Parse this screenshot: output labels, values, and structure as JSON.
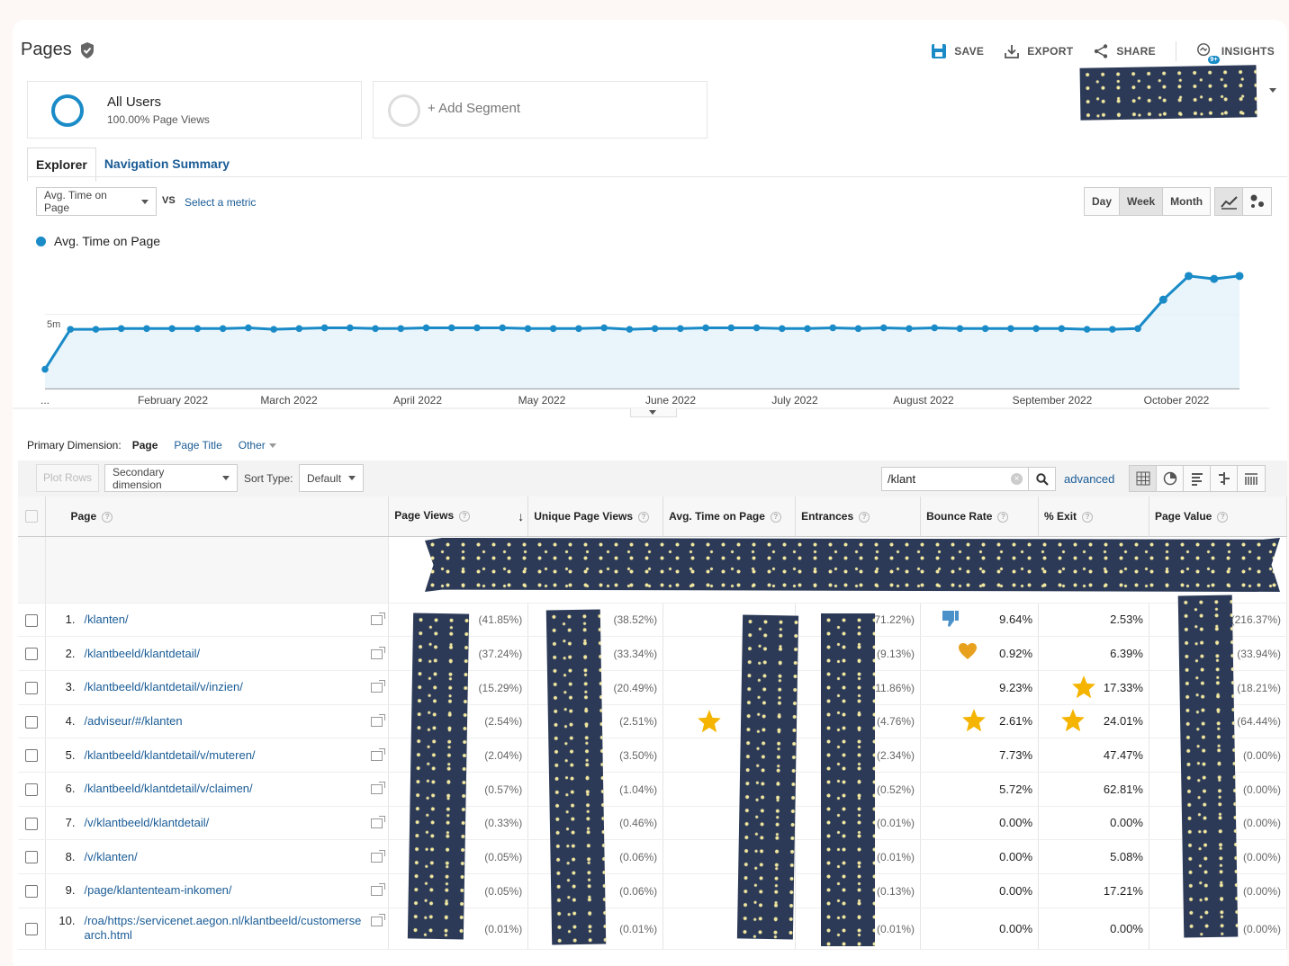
{
  "header": {
    "title": "Pages",
    "save": "SAVE",
    "export": "EXPORT",
    "share": "SHARE",
    "insights": "INSIGHTS",
    "insights_badge": "9+"
  },
  "segments": {
    "all_users": "All Users",
    "all_users_sub": "100.00% Page Views",
    "add": "+ Add Segment"
  },
  "tabs": {
    "explorer": "Explorer",
    "nav_summary": "Navigation Summary"
  },
  "metric": {
    "selected": "Avg. Time on Page",
    "vs": "VS",
    "select": "Select a metric",
    "legend": "Avg. Time on Page"
  },
  "period": {
    "day": "Day",
    "week": "Week",
    "month": "Month"
  },
  "chart_data": {
    "type": "line",
    "series": [
      {
        "name": "Avg. Time on Page",
        "color": "#1a8bc7"
      }
    ],
    "ytick_label": "5m",
    "xtick_labels": [
      "...",
      "February 2022",
      "March 2022",
      "April 2022",
      "May 2022",
      "June 2022",
      "July 2022",
      "August 2022",
      "September 2022",
      "October 2022"
    ],
    "values_min": [
      1.3,
      4.0,
      4.0,
      4.05,
      4.05,
      4.05,
      4.05,
      4.05,
      4.1,
      4.0,
      4.05,
      4.1,
      4.1,
      4.05,
      4.05,
      4.1,
      4.1,
      4.1,
      4.1,
      4.05,
      4.05,
      4.05,
      4.1,
      4.0,
      4.05,
      4.05,
      4.1,
      4.1,
      4.1,
      4.05,
      4.05,
      4.1,
      4.05,
      4.1,
      4.05,
      4.1,
      4.05,
      4.05,
      4.05,
      4.05,
      4.05,
      4.0,
      4.0,
      4.05,
      6.0,
      7.6,
      7.4,
      7.6
    ],
    "ylim": [
      0,
      8.5
    ],
    "grid": true
  },
  "dimension": {
    "label": "Primary Dimension:",
    "page": "Page",
    "page_title": "Page Title",
    "other": "Other"
  },
  "toolbar": {
    "plot_rows": "Plot Rows",
    "secondary": "Secondary dimension",
    "sort_label": "Sort Type:",
    "sort_value": "Default",
    "search_value": "/klant",
    "advanced": "advanced"
  },
  "columns": {
    "page": "Page",
    "page_views": "Page Views",
    "unique": "Unique Page Views",
    "avg_time": "Avg. Time on Page",
    "entrances": "Entrances",
    "bounce": "Bounce Rate",
    "exit": "% Exit",
    "value": "Page Value"
  },
  "rows": [
    {
      "n": "1.",
      "page": "/klanten/",
      "pv_pct": "(41.85%)",
      "upv_pct": "(38.52%)",
      "ent_pct": "(71.22%)",
      "bounce": "9.64%",
      "exit": "2.53%",
      "val_pct": "(216.37%)"
    },
    {
      "n": "2.",
      "page": "/klantbeeld/klantdetail/",
      "pv_pct": "(37.24%)",
      "upv_pct": "(33.34%)",
      "ent_pct": "(9.13%)",
      "bounce": "0.92%",
      "exit": "6.39%",
      "val_pct": "(33.94%)"
    },
    {
      "n": "3.",
      "page": "/klantbeeld/klantdetail/v/inzien/",
      "pv_pct": "(15.29%)",
      "upv_pct": "(20.49%)",
      "ent_pct": "(11.86%)",
      "bounce": "9.23%",
      "exit": "17.33%",
      "val_pct": "(18.21%)"
    },
    {
      "n": "4.",
      "page": "/adviseur/#/klanten",
      "pv_pct": "(2.54%)",
      "upv_pct": "(2.51%)",
      "ent_pct": "(4.76%)",
      "bounce": "2.61%",
      "exit": "24.01%",
      "val_pct": "(64.44%)"
    },
    {
      "n": "5.",
      "page": "/klantbeeld/klantdetail/v/muteren/",
      "pv_pct": "(2.04%)",
      "upv_pct": "(3.50%)",
      "ent_pct": "(2.34%)",
      "bounce": "7.73%",
      "exit": "47.47%",
      "val_pct": "(0.00%)"
    },
    {
      "n": "6.",
      "page": "/klantbeeld/klantdetail/v/claimen/",
      "pv_pct": "(0.57%)",
      "upv_pct": "(1.04%)",
      "ent_pct": "(0.52%)",
      "bounce": "5.72%",
      "exit": "62.81%",
      "val_pct": "(0.00%)"
    },
    {
      "n": "7.",
      "page": "/v/klantbeeld/klantdetail/",
      "pv_pct": "(0.33%)",
      "upv_pct": "(0.46%)",
      "ent_pct": "(0.01%)",
      "bounce": "0.00%",
      "exit": "0.00%",
      "val_pct": "(0.00%)"
    },
    {
      "n": "8.",
      "page": "/v/klanten/",
      "pv_pct": "(0.05%)",
      "upv_pct": "(0.06%)",
      "ent_pct": "(0.01%)",
      "bounce": "0.00%",
      "exit": "5.08%",
      "val_pct": "(0.00%)"
    },
    {
      "n": "9.",
      "page": "/page/klantenteam-inkomen/",
      "pv_pct": "(0.05%)",
      "upv_pct": "(0.06%)",
      "ent_pct": "(0.13%)",
      "bounce": "0.00%",
      "exit": "17.21%",
      "val_pct": "(0.00%)"
    },
    {
      "n": "10.",
      "page": "/roa/https:/servicenet.aegon.nl/klantbeeld/customersearch.html",
      "pv_pct": "(0.01%)",
      "upv_pct": "(0.01%)",
      "ent_pct": "(0.01%)",
      "bounce": "0.00%",
      "exit": "0.00%",
      "val_pct": "(0.00%)"
    }
  ],
  "stickers": [
    "thumbs-down-icon",
    "heart-icon",
    "star-icon"
  ],
  "colors": {
    "accent": "#1a8bc7",
    "link": "#1a5c96",
    "tape": "#2c3a57",
    "star": "#f5b400"
  }
}
